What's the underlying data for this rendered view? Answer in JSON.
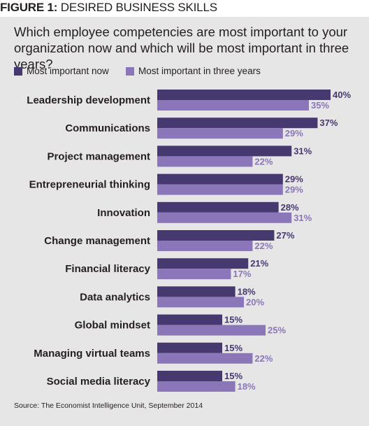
{
  "figure": {
    "label": "FIGURE 1:",
    "title": "DESIRED BUSINESS SKILLS"
  },
  "colors": {
    "panel_bg": "#e6e6e7",
    "now": "#46396f",
    "future": "#8a76b8",
    "text": "#231f20"
  },
  "chart_data": {
    "type": "bar",
    "orientation": "horizontal",
    "title": "Which employee competencies are most important to your organization now and which will be most important in three years?",
    "categories": [
      "Leadership development",
      "Communications",
      "Project management",
      "Entrepreneurial thinking",
      "Innovation",
      "Change management",
      "Financial literacy",
      "Data analytics",
      "Global mindset",
      "Managing virtual teams",
      "Social media literacy"
    ],
    "series": [
      {
        "name": "Most important now",
        "values": [
          40,
          37,
          31,
          29,
          28,
          27,
          21,
          18,
          15,
          15,
          15
        ]
      },
      {
        "name": "Most important in three years",
        "values": [
          35,
          29,
          22,
          29,
          31,
          22,
          17,
          20,
          25,
          22,
          18
        ]
      }
    ],
    "value_suffix": "%",
    "xlim": [
      0,
      40
    ],
    "grid": false,
    "legend_position": "top-left"
  },
  "source": "Source: The Economist Intelligence Unit, September 2014"
}
